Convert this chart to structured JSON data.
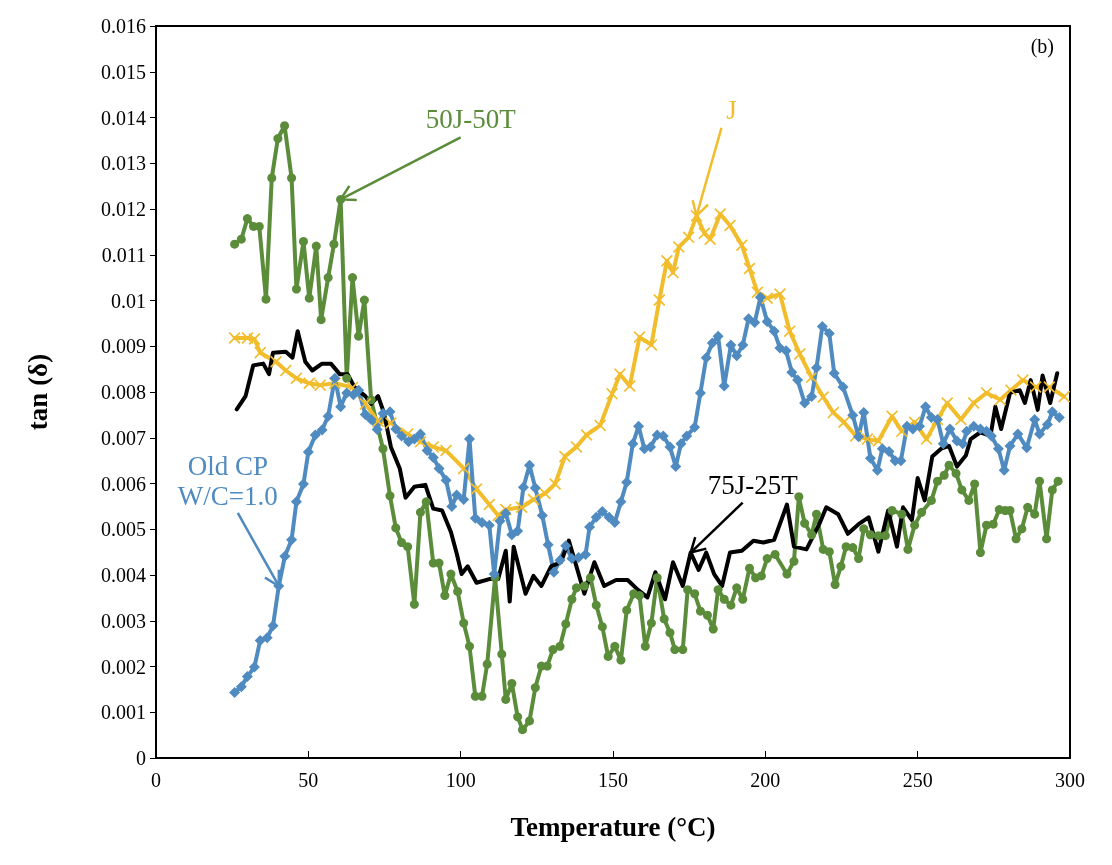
{
  "chart_data": {
    "type": "line",
    "xlabel": "Temperature (°C)",
    "ylabel": "tan (δ)",
    "xlim": [
      0,
      300
    ],
    "xticks": [
      0,
      50,
      100,
      150,
      200,
      250,
      300
    ],
    "ylim": [
      0,
      0.016
    ],
    "yticks": [
      0,
      0.001,
      0.002,
      0.003,
      0.004,
      0.005,
      0.006,
      0.007,
      0.008,
      0.009,
      0.01,
      0.011,
      0.012,
      0.013,
      0.014,
      0.015,
      0.016
    ],
    "grid": false,
    "annotations": [
      {
        "text": "50J-50T",
        "x": 60.6,
        "y": 0.01221
      },
      {
        "text": "J",
        "x": 177.4,
        "y": 0.01185
      },
      {
        "text": "Old CP\nW/C=1.0",
        "x": 40.3,
        "y": 0.00376
      },
      {
        "text": "75J-25T",
        "x": 175.5,
        "y": 0.00449
      },
      "(b)"
    ],
    "series": [
      {
        "color": "#5b8c3a",
        "marker": "circle",
        "x": [
          25.8,
          28,
          30,
          32,
          33.9,
          36.1,
          38,
          40,
          42.2,
          44.5,
          46.1,
          48.4,
          50.3,
          52.6,
          54.2,
          56.5,
          58.4,
          60.6,
          62.6,
          64.5,
          66.5,
          68.4,
          70.6,
          74.5,
          76.8,
          78.7,
          80.6,
          82.6,
          84.8,
          86.8,
          88.7,
          91,
          92.9,
          94.8,
          96.8,
          99,
          101,
          102.9,
          104.8,
          107,
          108.7,
          111.3,
          113.5,
          114.8,
          116.8,
          118.7,
          120.3,
          122.6,
          124.5,
          126.5,
          128.4,
          130.3,
          132.6,
          134.5,
          136.5,
          138,
          140.6,
          142.6,
          144.5,
          146.5,
          148.4,
          150.6,
          152.6,
          154.5,
          156.8,
          158.7,
          160.6,
          162.6,
          164.5,
          166.8,
          168.7,
          170.3,
          172.9,
          174.5,
          176.8,
          178.7,
          181,
          182.9,
          184.5,
          186.5,
          188.7,
          190.6,
          192.6,
          194.8,
          196.8,
          198.7,
          200.6,
          203.2,
          207.1,
          209.4,
          211,
          212.9,
          215.2,
          216.8,
          219,
          221,
          222.9,
          224.8,
          226.5,
          228.7,
          230.6,
          232.3,
          234.5,
          237.1,
          239.4,
          241.6,
          244.8,
          246.8,
          249,
          251.3,
          254.5,
          256.5,
          258.7,
          260.3,
          262.6,
          264.5,
          266.8,
          268.7,
          270.6,
          272.6,
          274.8,
          276.8,
          278.7,
          280.3,
          282.3,
          284.2,
          286.1,
          288.4,
          290,
          292.3,
          294.2,
          296.1
        ],
        "values": [
          0.01123,
          0.01134,
          0.01179,
          0.01162,
          0.01162,
          0.01003,
          0.01268,
          0.01354,
          0.01382,
          0.01268,
          0.01025,
          0.01129,
          0.01005,
          0.01119,
          0.00958,
          0.0105,
          0.01123,
          0.01221,
          0.0083,
          0.0105,
          0.00922,
          0.01001,
          0.00783,
          0.00676,
          0.00573,
          0.00503,
          0.00471,
          0.00462,
          0.00336,
          0.00537,
          0.0056,
          0.00426,
          0.00426,
          0.00355,
          0.00402,
          0.00364,
          0.00295,
          0.00244,
          0.00135,
          0.00135,
          0.00205,
          0.00394,
          0.00227,
          0.00128,
          0.00163,
          0.0009,
          0.00062,
          0.00081,
          0.00154,
          0.00201,
          0.00201,
          0.00237,
          0.00244,
          0.00293,
          0.00347,
          0.00372,
          0.00376,
          0.00394,
          0.00334,
          0.00287,
          0.00222,
          0.00244,
          0.00214,
          0.00323,
          0.00359,
          0.00355,
          0.00244,
          0.00295,
          0.00394,
          0.00304,
          0.00274,
          0.00237,
          0.00237,
          0.00368,
          0.00359,
          0.00321,
          0.00312,
          0.00282,
          0.00368,
          0.00347,
          0.00334,
          0.00372,
          0.00347,
          0.00415,
          0.00394,
          0.00398,
          0.00436,
          0.00445,
          0.00402,
          0.0043,
          0.00571,
          0.00513,
          0.00488,
          0.00533,
          0.00456,
          0.00451,
          0.00379,
          0.00419,
          0.00462,
          0.0046,
          0.00436,
          0.00501,
          0.00488,
          0.00486,
          0.00486,
          0.00541,
          0.00533,
          0.00456,
          0.00509,
          0.00537,
          0.00563,
          0.00605,
          0.00618,
          0.0064,
          0.00622,
          0.00586,
          0.00563,
          0.00599,
          0.00449,
          0.00509,
          0.00511,
          0.00543,
          0.00541,
          0.00541,
          0.00479,
          0.00501,
          0.00548,
          0.00533,
          0.00605,
          0.00479,
          0.00586,
          0.00605
        ]
      },
      {
        "color": "#f2bd2c",
        "marker": "cross",
        "x": [
          25.8,
          30,
          32.3,
          34.2,
          39.4,
          42.6,
          46.1,
          50.3,
          53.9,
          58.7,
          64.5,
          68.7,
          72.9,
          77.1,
          82.6,
          86.8,
          91,
          95.2,
          101,
          105.2,
          109.4,
          112.3,
          114.8,
          120,
          123.9,
          127.7,
          131,
          134.2,
          138,
          141.3,
          145.8,
          149.7,
          152.3,
          155.5,
          158.7,
          162.6,
          165.2,
          167.7,
          169.7,
          171.6,
          174.8,
          177.4,
          180,
          181.9,
          185.2,
          188.4,
          192.3,
          194.8,
          197.4,
          200.6,
          204.8,
          208,
          211.3,
          215.2,
          219,
          222.3,
          225.8,
          229.7,
          233.5,
          237.1,
          241.6,
          244.8,
          249,
          252.9,
          256.5,
          259.7,
          264.2,
          268.4,
          272.6,
          277.1,
          280.6,
          284.5,
          288.7,
          293.2,
          298.1
        ],
        "values": [
          0.00918,
          0.00918,
          0.00916,
          0.00886,
          0.00866,
          0.00847,
          0.0083,
          0.00819,
          0.00815,
          0.00819,
          0.0081,
          0.00774,
          0.00736,
          0.00732,
          0.00708,
          0.00691,
          0.0068,
          0.00672,
          0.00633,
          0.00588,
          0.00554,
          0.0053,
          0.00543,
          0.00548,
          0.00565,
          0.00578,
          0.00599,
          0.00659,
          0.0068,
          0.00706,
          0.00727,
          0.00796,
          0.00839,
          0.00813,
          0.0092,
          0.00903,
          0.01001,
          0.01087,
          0.01061,
          0.01117,
          0.01138,
          0.01185,
          0.01147,
          0.01134,
          0.01189,
          0.01164,
          0.01121,
          0.0107,
          0.01018,
          0.01005,
          0.01014,
          0.00933,
          0.00883,
          0.00832,
          0.00789,
          0.00755,
          0.00734,
          0.00704,
          0.00697,
          0.00693,
          0.00747,
          0.00714,
          0.00734,
          0.00697,
          0.0074,
          0.00776,
          0.0074,
          0.00776,
          0.00798,
          0.00783,
          0.00804,
          0.00826,
          0.00811,
          0.00811,
          0.0079
        ]
      },
      {
        "color": "#4f8bc0",
        "marker": "diamond",
        "x": [
          25.8,
          28,
          30,
          32.3,
          34.2,
          36.5,
          38.4,
          40.3,
          42.3,
          44.5,
          46.1,
          48.4,
          50,
          52.3,
          54.5,
          56.5,
          58.7,
          60.6,
          62.6,
          64.8,
          66.5,
          68.7,
          70.6,
          72.6,
          74.5,
          76.8,
          78.7,
          80.6,
          82.9,
          84.8,
          86.8,
          89,
          91,
          92.9,
          95.2,
          97.1,
          98.7,
          101,
          102.9,
          104.8,
          107,
          109.4,
          111,
          112.9,
          114.8,
          116.8,
          118.7,
          120.6,
          122.6,
          124.5,
          126.8,
          128.7,
          130.6,
          132.6,
          134.5,
          136.5,
          138.7,
          141,
          142.3,
          144.5,
          146.5,
          148.7,
          150.6,
          152.6,
          154.5,
          156.5,
          158.4,
          160.3,
          162.3,
          164.5,
          166.5,
          168.7,
          170.6,
          172.3,
          174.2,
          176.8,
          178.7,
          180.6,
          182.6,
          184.5,
          186.5,
          188.7,
          190.6,
          192.6,
          194.5,
          196.5,
          198.4,
          200.6,
          202.9,
          204.8,
          206.8,
          208.7,
          210.6,
          212.9,
          215.2,
          216.8,
          218.7,
          221,
          222.6,
          225.5,
          228.7,
          230.6,
          232.3,
          234.5,
          236.8,
          238.4,
          240.6,
          242.6,
          244.5,
          246.5,
          248.4,
          250.6,
          252.6,
          254.5,
          256.5,
          258.4,
          260.6,
          262.9,
          264.8,
          266.1,
          268.4,
          270.6,
          272.6,
          274.2,
          276.5,
          278.4,
          280.3,
          282.9,
          285.8,
          288.4,
          290,
          292.6,
          294.2,
          296.5
        ],
        "values": [
          0.00143,
          0.00156,
          0.00178,
          0.00199,
          0.00257,
          0.00263,
          0.00289,
          0.00376,
          0.00441,
          0.00477,
          0.0056,
          0.00599,
          0.00669,
          0.00706,
          0.00717,
          0.00747,
          0.0083,
          0.00768,
          0.00798,
          0.00794,
          0.00804,
          0.00751,
          0.0074,
          0.00718,
          0.00753,
          0.00757,
          0.00719,
          0.00704,
          0.00691,
          0.00697,
          0.00708,
          0.00672,
          0.00657,
          0.00633,
          0.00607,
          0.0055,
          0.00575,
          0.00565,
          0.00697,
          0.00524,
          0.00515,
          0.00509,
          0.00402,
          0.00518,
          0.00535,
          0.00488,
          0.00496,
          0.00592,
          0.0064,
          0.0059,
          0.0053,
          0.00466,
          0.00406,
          0.00432,
          0.00464,
          0.00436,
          0.00438,
          0.00445,
          0.00505,
          0.00526,
          0.00539,
          0.00526,
          0.00515,
          0.0056,
          0.00603,
          0.00687,
          0.00725,
          0.00676,
          0.0068,
          0.00706,
          0.00704,
          0.0068,
          0.00637,
          0.00687,
          0.00704,
          0.00723,
          0.00798,
          0.00875,
          0.00907,
          0.00922,
          0.00813,
          0.00903,
          0.00879,
          0.00903,
          0.0096,
          0.00952,
          0.01007,
          0.00954,
          0.00933,
          0.00896,
          0.0089,
          0.00843,
          0.00826,
          0.00776,
          0.0079,
          0.00853,
          0.00943,
          0.00928,
          0.00841,
          0.00811,
          0.00749,
          0.00702,
          0.00755,
          0.00655,
          0.00629,
          0.00676,
          0.0067,
          0.0065,
          0.0065,
          0.00725,
          0.00719,
          0.00725,
          0.00768,
          0.00744,
          0.0074,
          0.00687,
          0.00719,
          0.00693,
          0.00687,
          0.00714,
          0.00725,
          0.00719,
          0.00714,
          0.00704,
          0.00676,
          0.00629,
          0.00682,
          0.00708,
          0.00678,
          0.0074,
          0.00708,
          0.00729,
          0.00757,
          0.00744
        ]
      },
      {
        "color": "#000000",
        "x": [
          26.5,
          29.4,
          31.9,
          35.2,
          37.1,
          38.4,
          42.6,
          44.8,
          46.5,
          49,
          51.3,
          54.5,
          57.4,
          60.3,
          62.9,
          65.2,
          68.7,
          70.6,
          72.9,
          74.8,
          77.1,
          80,
          81.9,
          84.8,
          88.4,
          91,
          93.9,
          96.8,
          98.7,
          100.3,
          102.3,
          105.2,
          109.4,
          112.3,
          114.8,
          116.1,
          117.4,
          121.3,
          123.9,
          126.5,
          129.7,
          132.9,
          135.5,
          138,
          140.6,
          143.9,
          147.1,
          151,
          154.8,
          158.1,
          161.3,
          163.9,
          167.1,
          169.7,
          172.9,
          175.5,
          178.1,
          180.6,
          183.2,
          185.8,
          188.4,
          192.3,
          196.1,
          199.4,
          202.9,
          207.1,
          209.4,
          213.5,
          217.7,
          220,
          223.9,
          227.1,
          230.6,
          233.9,
          237.1,
          240.3,
          243.2,
          245.2,
          248.1,
          250,
          252.3,
          254.8,
          257.7,
          260.3,
          262.9,
          265.8,
          267.4,
          270.6,
          273.9,
          275.5,
          277.4,
          280.3,
          283.5,
          285.2,
          287.1,
          289.4,
          291,
          293.5,
          295.8
        ],
        "values": [
          0.00762,
          0.00791,
          0.00858,
          0.00862,
          0.00839,
          0.00886,
          0.00888,
          0.00875,
          0.00933,
          0.00866,
          0.00847,
          0.00862,
          0.00862,
          0.00839,
          0.00839,
          0.0081,
          0.00791,
          0.00774,
          0.00791,
          0.00755,
          0.0068,
          0.00633,
          0.00569,
          0.00593,
          0.00597,
          0.00545,
          0.00541,
          0.00494,
          0.00447,
          0.00402,
          0.00419,
          0.00383,
          0.00391,
          0.00391,
          0.00453,
          0.00342,
          0.00462,
          0.00359,
          0.00398,
          0.00376,
          0.00419,
          0.00428,
          0.00475,
          0.00419,
          0.00359,
          0.00428,
          0.00376,
          0.00389,
          0.00389,
          0.00368,
          0.00351,
          0.00406,
          0.00347,
          0.00428,
          0.00376,
          0.00449,
          0.00411,
          0.00449,
          0.00402,
          0.00376,
          0.00449,
          0.00453,
          0.00475,
          0.00471,
          0.00477,
          0.00554,
          0.00462,
          0.00456,
          0.00511,
          0.00548,
          0.00533,
          0.0049,
          0.00511,
          0.00526,
          0.00451,
          0.00541,
          0.00462,
          0.00548,
          0.0052,
          0.00612,
          0.00563,
          0.00659,
          0.00676,
          0.00682,
          0.00637,
          0.00661,
          0.00697,
          0.00712,
          0.00704,
          0.00768,
          0.00719,
          0.00798,
          0.00804,
          0.00776,
          0.00826,
          0.00761,
          0.00836,
          0.00776,
          0.00841
        ]
      }
    ]
  }
}
